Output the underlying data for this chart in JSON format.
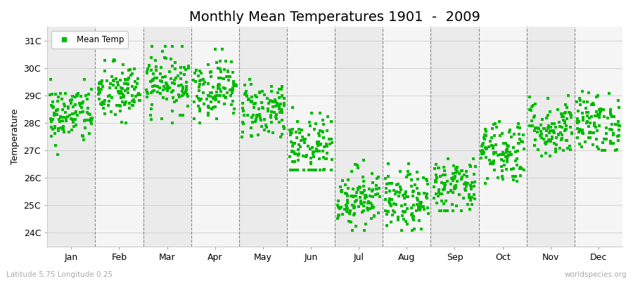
{
  "title": "Monthly Mean Temperatures 1901  -  2009",
  "ylabel": "Temperature",
  "xlabel_labels": [
    "Jan",
    "Feb",
    "Mar",
    "Apr",
    "May",
    "Jun",
    "Jul",
    "Aug",
    "Sep",
    "Oct",
    "Nov",
    "Dec"
  ],
  "yticks": [
    24,
    25,
    26,
    27,
    28,
    29,
    30,
    31
  ],
  "ytick_labels": [
    "24C",
    "25C",
    "26C",
    "27C",
    "28C",
    "29C",
    "30C",
    "31C"
  ],
  "ylim": [
    23.5,
    31.5
  ],
  "dot_color": "#00bb00",
  "dot_size": 5,
  "background_color": "#ffffff",
  "plot_bg_color": "#ffffff",
  "band_color_odd": "#ebebeb",
  "band_color_even": "#f5f5f5",
  "title_fontsize": 14,
  "axis_fontsize": 9,
  "legend_label": "Mean Temp",
  "footer_left": "Latitude 5.75 Longitude 0.25",
  "footer_right": "worldspecies.org",
  "seed": 42,
  "n_years": 109,
  "monthly_means": [
    28.3,
    29.1,
    29.5,
    29.3,
    28.5,
    27.0,
    25.3,
    25.1,
    25.7,
    27.0,
    27.8,
    28.0
  ],
  "monthly_stds": [
    0.55,
    0.55,
    0.55,
    0.55,
    0.55,
    0.65,
    0.55,
    0.55,
    0.55,
    0.6,
    0.55,
    0.55
  ],
  "monthly_mins": [
    26.5,
    28.0,
    28.0,
    28.0,
    27.5,
    26.3,
    24.1,
    24.1,
    24.8,
    25.8,
    26.8,
    27.0
  ],
  "monthly_maxs": [
    29.6,
    30.7,
    30.8,
    30.7,
    29.6,
    28.6,
    26.7,
    26.6,
    27.3,
    28.5,
    29.3,
    29.6
  ]
}
